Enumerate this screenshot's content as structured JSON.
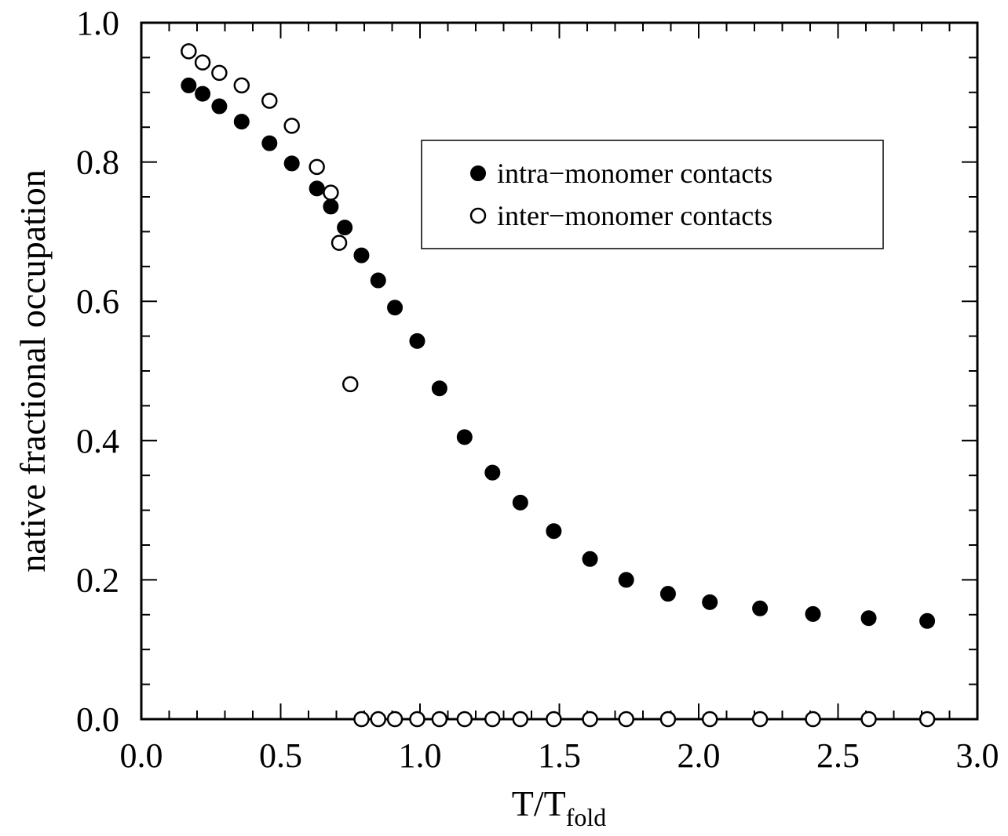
{
  "chart_data": {
    "type": "scatter",
    "xlabel_main": "T/T",
    "xlabel_sub": "fold",
    "ylabel": "native fractional occupation",
    "xlim": [
      0.0,
      3.0
    ],
    "ylim": [
      0.0,
      1.0
    ],
    "x_ticks": [
      "0.0",
      "0.5",
      "1.0",
      "1.5",
      "2.0",
      "2.5",
      "3.0"
    ],
    "y_ticks": [
      "0.0",
      "0.2",
      "0.4",
      "0.6",
      "0.8",
      "1.0"
    ],
    "grid": false,
    "legend_position": "top-right",
    "series": [
      {
        "name": "intra−monomer contacts",
        "marker": "filled-circle",
        "color": "#000000",
        "x": [
          0.17,
          0.22,
          0.28,
          0.36,
          0.46,
          0.54,
          0.63,
          0.68,
          0.73,
          0.79,
          0.85,
          0.91,
          0.99,
          1.07,
          1.16,
          1.26,
          1.36,
          1.48,
          1.61,
          1.74,
          1.89,
          2.04,
          2.22,
          2.41,
          2.61,
          2.82
        ],
        "y": [
          0.91,
          0.898,
          0.88,
          0.858,
          0.827,
          0.798,
          0.762,
          0.736,
          0.706,
          0.666,
          0.63,
          0.591,
          0.543,
          0.475,
          0.405,
          0.354,
          0.311,
          0.27,
          0.23,
          0.2,
          0.18,
          0.168,
          0.159,
          0.151,
          0.145,
          0.141
        ]
      },
      {
        "name": "inter−monomer contacts",
        "marker": "open-circle",
        "color": "#000000",
        "x": [
          0.17,
          0.22,
          0.28,
          0.36,
          0.46,
          0.54,
          0.63,
          0.68,
          0.71,
          0.75,
          0.79,
          0.85,
          0.91,
          0.99,
          1.07,
          1.16,
          1.26,
          1.36,
          1.48,
          1.61,
          1.74,
          1.89,
          2.04,
          2.22,
          2.41,
          2.61,
          2.82
        ],
        "y": [
          0.959,
          0.943,
          0.928,
          0.91,
          0.888,
          0.852,
          0.793,
          0.756,
          0.684,
          0.481,
          0.0,
          0.0,
          0.0,
          0.0,
          0.0,
          0.0,
          0.0,
          0.0,
          0.0,
          0.0,
          0.0,
          0.0,
          0.0,
          0.0,
          0.0,
          0.0,
          0.0
        ]
      }
    ]
  }
}
